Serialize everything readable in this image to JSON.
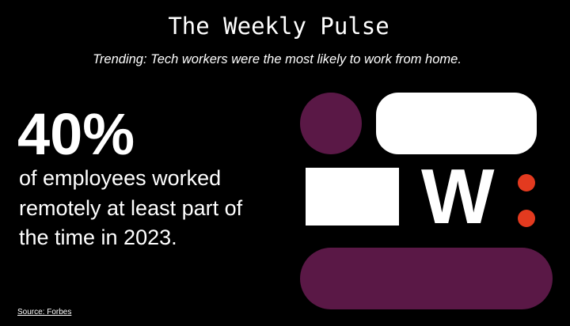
{
  "header": {
    "title": "The Weekly Pulse",
    "subtitle": "Trending: Tech workers were the most likely to work from home."
  },
  "stat": {
    "value": "40%",
    "lines": [
      "of employees worked",
      "remotely at least part of",
      "the time in 2023."
    ]
  },
  "logo": {
    "letter": "W"
  },
  "source": "Source: Forbes"
}
